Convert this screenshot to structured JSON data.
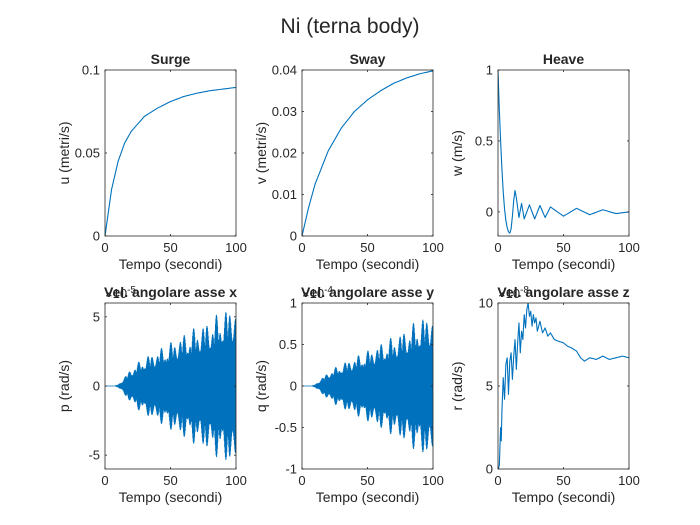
{
  "figure": {
    "title": "Ni (terna body)"
  },
  "chart_data": [
    {
      "type": "line",
      "title": "Surge",
      "xlabel": "Tempo (secondi)",
      "ylabel": "u (metri/s)",
      "xlim": [
        0,
        100
      ],
      "ylim": [
        0,
        0.1
      ],
      "xticks": [
        0,
        50,
        100
      ],
      "xtick_labels": [
        "0",
        "50",
        "100"
      ],
      "yticks": [
        0,
        0.05,
        0.1
      ],
      "ytick_labels": [
        "0",
        "0.05",
        "0.1"
      ],
      "y_exponent": "",
      "color": "#0072bd",
      "series": [
        {
          "x": [
            0,
            5,
            10,
            15,
            20,
            30,
            40,
            50,
            60,
            70,
            80,
            90,
            100
          ],
          "y": [
            0,
            0.028,
            0.045,
            0.056,
            0.063,
            0.072,
            0.077,
            0.081,
            0.084,
            0.086,
            0.0875,
            0.0885,
            0.0895
          ]
        }
      ]
    },
    {
      "type": "line",
      "title": "Sway",
      "xlabel": "Tempo (secondi)",
      "ylabel": "v (metri/s)",
      "xlim": [
        0,
        100
      ],
      "ylim": [
        0,
        0.04
      ],
      "xticks": [
        0,
        50,
        100
      ],
      "xtick_labels": [
        "0",
        "50",
        "100"
      ],
      "yticks": [
        0,
        0.01,
        0.02,
        0.03,
        0.04
      ],
      "ytick_labels": [
        "0",
        "0.01",
        "0.02",
        "0.03",
        "0.04"
      ],
      "y_exponent": "",
      "color": "#0072bd",
      "series": [
        {
          "x": [
            0,
            5,
            10,
            20,
            30,
            40,
            50,
            60,
            70,
            80,
            90,
            100
          ],
          "y": [
            0,
            0.0068,
            0.0125,
            0.0205,
            0.026,
            0.03,
            0.0328,
            0.035,
            0.0368,
            0.0381,
            0.0391,
            0.0398
          ]
        }
      ]
    },
    {
      "type": "line",
      "title": "Heave",
      "xlabel": "Tempo (secondi)",
      "ylabel": "w (m/s)",
      "xlim": [
        0,
        100
      ],
      "ylim": [
        -0.17,
        1
      ],
      "xticks": [
        0,
        50,
        100
      ],
      "xtick_labels": [
        "0",
        "50",
        "100"
      ],
      "yticks": [
        0,
        0.5,
        1
      ],
      "ytick_labels": [
        "0",
        "0.5",
        "1"
      ],
      "y_exponent": "",
      "color": "#0072bd",
      "series": [
        {
          "x": [
            0,
            1,
            2,
            3,
            4,
            5,
            6,
            7,
            8,
            9,
            10,
            11,
            12,
            13,
            14,
            16,
            18,
            20,
            24,
            28,
            32,
            36,
            40,
            50,
            60,
            70,
            80,
            90,
            100
          ],
          "y": [
            1,
            0.72,
            0.5,
            0.3,
            0.14,
            0.02,
            -0.06,
            -0.11,
            -0.14,
            -0.15,
            -0.12,
            -0.03,
            0.08,
            0.15,
            0.1,
            -0.04,
            0.06,
            -0.05,
            0.05,
            -0.05,
            0.045,
            -0.04,
            0.035,
            -0.03,
            0.025,
            -0.02,
            0.015,
            -0.012,
            0
          ]
        }
      ]
    },
    {
      "type": "line",
      "title": "Vel. angolare asse x",
      "xlabel": "Tempo (secondi)",
      "ylabel": "p (rad/s)",
      "xlim": [
        0,
        100
      ],
      "ylim": [
        -6,
        6
      ],
      "xticks": [
        0,
        50,
        100
      ],
      "xtick_labels": [
        "0",
        "50",
        "100"
      ],
      "yticks": [
        -5,
        0,
        5
      ],
      "ytick_labels": [
        "-5",
        "0",
        "5"
      ],
      "y_exponent": "10^-5",
      "color": "#0072bd",
      "envelope": {
        "x": [
          0,
          8,
          12,
          20,
          30,
          40,
          50,
          60,
          70,
          80,
          90,
          100
        ],
        "amp": [
          0,
          0,
          0.3,
          1.3,
          2.1,
          2.6,
          3.2,
          3.8,
          4.3,
          4.8,
          5.5,
          6.0
        ]
      }
    },
    {
      "type": "line",
      "title": "Vel. angolare asse y",
      "xlabel": "Tempo (secondi)",
      "ylabel": "q (rad/s)",
      "xlim": [
        0,
        100
      ],
      "ylim": [
        -1,
        1
      ],
      "xticks": [
        0,
        50,
        100
      ],
      "xtick_labels": [
        "0",
        "50",
        "100"
      ],
      "yticks": [
        -1,
        -0.5,
        0,
        0.5,
        1
      ],
      "ytick_labels": [
        "-1",
        "-0.5",
        "0",
        "0.5",
        "1"
      ],
      "y_exponent": "10^-4",
      "color": "#0072bd",
      "envelope": {
        "x": [
          0,
          8,
          12,
          20,
          30,
          40,
          50,
          60,
          70,
          80,
          90,
          100
        ],
        "amp": [
          0,
          0,
          0.05,
          0.17,
          0.27,
          0.35,
          0.43,
          0.52,
          0.6,
          0.7,
          0.82,
          0.9
        ]
      }
    },
    {
      "type": "line",
      "title": "Vel. angolare asse z",
      "xlabel": "Tempo (secondi)",
      "ylabel": "r (rad/s)",
      "xlim": [
        0,
        100
      ],
      "ylim": [
        0,
        10
      ],
      "xticks": [
        0,
        50,
        100
      ],
      "xtick_labels": [
        "0",
        "50",
        "100"
      ],
      "yticks": [
        0,
        5,
        10
      ],
      "ytick_labels": [
        "0",
        "5",
        "10"
      ],
      "y_exponent": "10^-8",
      "color": "#0072bd",
      "series": [
        {
          "x": [
            0,
            1,
            2,
            2.5,
            3,
            4,
            5,
            6,
            7,
            8,
            9,
            10,
            11,
            12,
            13,
            14,
            15,
            16,
            17,
            18,
            19,
            20,
            21,
            22,
            23,
            24,
            25,
            26,
            27,
            28,
            29,
            30,
            32,
            34,
            36,
            38,
            40,
            43,
            46,
            50,
            53,
            56,
            60,
            63,
            66,
            70,
            75,
            80,
            85,
            90,
            95,
            100
          ],
          "y": [
            0,
            0.2,
            2.5,
            1.7,
            3.5,
            5.5,
            4.2,
            6.3,
            6.7,
            4.5,
            6.5,
            7.0,
            5.4,
            6.8,
            7.8,
            6.0,
            7.6,
            8.8,
            7.0,
            8.3,
            7.8,
            9.3,
            8.5,
            9.6,
            10.0,
            9.2,
            9.5,
            8.6,
            9.3,
            8.8,
            9.1,
            8.3,
            8.9,
            8.2,
            8.5,
            8.0,
            8.2,
            7.8,
            7.7,
            7.6,
            7.4,
            7.3,
            7.1,
            6.7,
            6.5,
            6.7,
            6.6,
            6.8,
            6.6,
            6.7,
            6.8,
            6.7
          ]
        }
      ]
    }
  ]
}
